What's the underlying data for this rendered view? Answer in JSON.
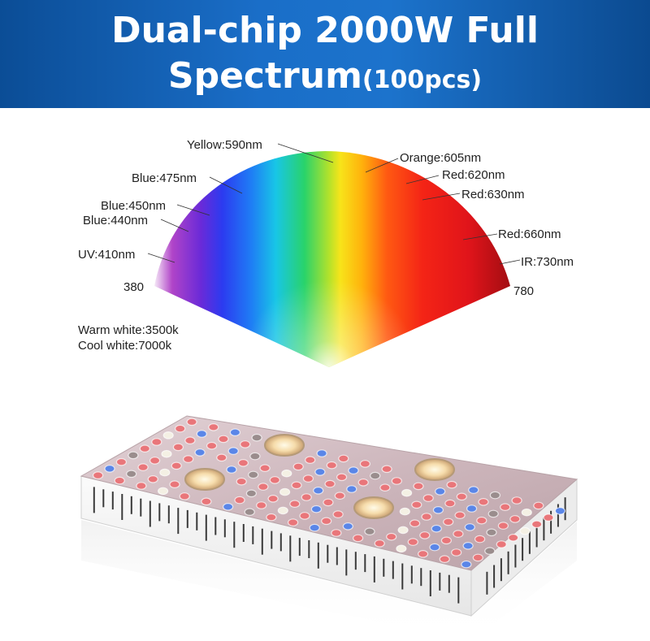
{
  "banner": {
    "title_line1": "Dual-chip 2000W Full",
    "title_line2": "Spectrum",
    "title_suffix": "(100pcs)",
    "bg_color": "#1a6ec8",
    "text_color": "#ffffff"
  },
  "spectrum": {
    "range_start": "380",
    "range_end": "780",
    "labels": {
      "yellow": "Yellow:590nm",
      "orange": "Orange:605nm",
      "blue475": "Blue:475nm",
      "red620": "Red:620nm",
      "blue450": "Blue:450nm",
      "red630": "Red:630nm",
      "blue440": "Blue:440nm",
      "red660": "Red:660nm",
      "uv410": "UV:410nm",
      "ir730": "IR:730nm"
    },
    "notes": {
      "warm": "Warm white:3500k",
      "cool": "Cool white:7000k"
    }
  },
  "fixture": {
    "name": "grow-light-panel",
    "cob_count": 4,
    "led_colors": [
      "#e9767a",
      "#5a86e8",
      "#f4f0e4",
      "#9a8d8d"
    ]
  }
}
